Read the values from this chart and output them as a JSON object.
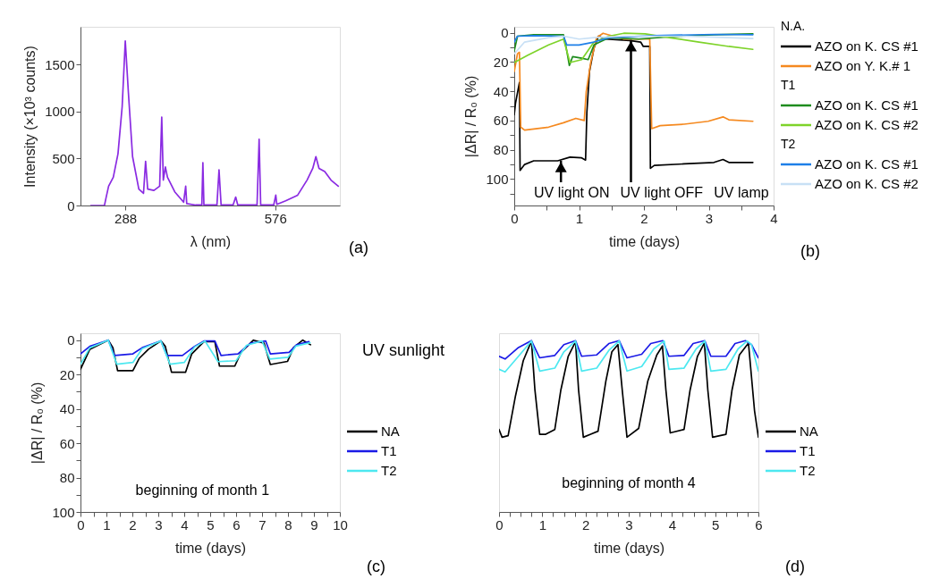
{
  "chart_data": [
    {
      "type": "line",
      "xlabel": "λ (nm)",
      "ylabel": "Intensity (×10³ counts)",
      "xlim": [
        202,
        700
      ],
      "ylim": [
        0,
        1900
      ],
      "xticks": [
        288,
        576
      ],
      "yticks": [
        0,
        500,
        1000,
        1500
      ],
      "annotations": [
        "(a)"
      ],
      "series": [
        {
          "color": "#8a2be2",
          "x": [
            222,
            248,
            251,
            256,
            265,
            274,
            282,
            288,
            294,
            302,
            314,
            323,
            327,
            331,
            343,
            354,
            358,
            361,
            365,
            369,
            383,
            400,
            404,
            406,
            423,
            435,
            437,
            439,
            464,
            468,
            472,
            495,
            500,
            504,
            541,
            545,
            548,
            573,
            577,
            579,
            596,
            619,
            637,
            648,
            654,
            660,
            671,
            683,
            697
          ],
          "values": [
            0,
            0,
            80,
            205,
            300,
            550,
            1050,
            1750,
            1200,
            520,
            175,
            130,
            470,
            175,
            160,
            205,
            940,
            270,
            410,
            300,
            145,
            35,
            205,
            20,
            5,
            5,
            455,
            5,
            5,
            380,
            5,
            5,
            90,
            5,
            5,
            705,
            5,
            5,
            110,
            12,
            50,
            110,
            270,
            395,
            520,
            395,
            360,
            270,
            205
          ]
        }
      ]
    },
    {
      "type": "line",
      "xlabel": "time (days)",
      "ylabel": "|ΔR| / R₀ (%)",
      "xlim": [
        0,
        4
      ],
      "ylim": [
        118,
        -4
      ],
      "xticks": [
        0,
        {
          "value": 0.5,
          "label": null
        },
        1,
        {
          "value": 1.5,
          "label": null
        },
        2,
        {
          "value": 2.5,
          "label": null
        },
        3,
        {
          "value": 3.5,
          "label": null
        },
        4
      ],
      "yticks": [
        0,
        {
          "value": 10,
          "label": null
        },
        20,
        {
          "value": 30,
          "label": null
        },
        40,
        {
          "value": 50,
          "label": null
        },
        60,
        {
          "value": 70,
          "label": null
        },
        80,
        {
          "value": 90,
          "label": null
        },
        100,
        {
          "value": 110,
          "label": null
        }
      ],
      "legend": "right",
      "annotations": [
        "N.A.",
        "T1",
        "T2",
        "UV lamp",
        {
          "text": "UV light ON",
          "x": 0.72,
          "y": 87.5
        },
        {
          "text": "UV light OFF",
          "x": 1.8,
          "y": 5
        },
        "(b)"
      ],
      "series": [
        {
          "name": "AZO on K. CS #1",
          "color": "#000000",
          "x": [
            0,
            0.02,
            0.08,
            0.09,
            0.16,
            0.3,
            0.67,
            0.86,
            1.04,
            1.1,
            1.12,
            1.16,
            1.23,
            1.3,
            1.41,
            1.78,
            1.95,
            1.99,
            2.09,
            2.1,
            2.16,
            2.62,
            3.08,
            3.22,
            3.31,
            3.68
          ],
          "values": [
            56,
            48,
            34,
            94,
            90,
            87.5,
            87.5,
            85,
            85.5,
            87,
            54.5,
            26.5,
            10.4,
            2.4,
            4.4,
            5.4,
            6.4,
            9.4,
            9.4,
            92.6,
            90.6,
            89.6,
            88.6,
            86.6,
            88.6,
            88.6
          ]
        },
        {
          "name": "AZO on Y. K.# 1",
          "color": "#f5891f",
          "x": [
            0,
            0.05,
            0.08,
            0.1,
            0.16,
            0.53,
            0.76,
            0.95,
            1.08,
            1.11,
            1.18,
            1.27,
            1.37,
            1.69,
            2.09,
            2.12,
            2.25,
            2.62,
            2.99,
            3.22,
            3.31,
            3.68
          ],
          "values": [
            26.5,
            14.4,
            13.4,
            64.5,
            66.5,
            64.5,
            61.5,
            58.5,
            60,
            40.5,
            20.4,
            3.4,
            0.4,
            4.4,
            4.4,
            65.5,
            63.5,
            62.5,
            60.5,
            57.5,
            59.5,
            60.5
          ]
        },
        {
          "name": "AZO on K. CS #1",
          "color": "#1e8c1e",
          "x": [
            0,
            0.05,
            0.3,
            0.76,
            0.81,
            0.85,
            0.9,
            1.04,
            1.14,
            1.23,
            1.32,
            1.46,
            1.92,
            2.39,
            3.08,
            3.68
          ],
          "values": [
            12.4,
            2.4,
            1.4,
            1.4,
            12.4,
            22.4,
            16.4,
            17.4,
            18.4,
            8.4,
            6.4,
            3.4,
            4.4,
            2.8,
            1.4,
            0.8
          ]
        },
        {
          "name": "AZO on K. CS #2",
          "color": "#7ed32a",
          "x": [
            0,
            0.21,
            0.53,
            0.76,
            0.86,
            1.04,
            1.23,
            1.46,
            1.69,
            2.02,
            2.39,
            2.85,
            3.31,
            3.68
          ],
          "values": [
            20.4,
            15.4,
            8.4,
            4.4,
            20.4,
            18.4,
            6.4,
            2.4,
            0.4,
            0.8,
            3.4,
            6.4,
            9.4,
            11.4
          ]
        },
        {
          "name": "AZO on K. CS #1",
          "color": "#1e7fe8",
          "x": [
            0,
            0.05,
            0.3,
            0.76,
            0.81,
            1.0,
            1.23,
            1.46,
            2.16,
            3.08,
            3.68
          ],
          "values": [
            6.4,
            2.4,
            2,
            2.4,
            8.4,
            8.4,
            6.4,
            3.4,
            2,
            1.2,
            1.4
          ]
        },
        {
          "name": "AZO on K. CS #2",
          "color": "#c8e0f5",
          "x": [
            0,
            0.16,
            0.53,
            0.76,
            1.0,
            1.23,
            1.69,
            2.62,
            3.31,
            3.68
          ],
          "values": [
            14.4,
            6.4,
            3.4,
            2.4,
            4.4,
            3.4,
            2.4,
            2.4,
            3.4,
            4
          ]
        }
      ]
    },
    {
      "type": "line",
      "xlabel": "time (days)",
      "ylabel": "|ΔR| / R₀ (%)",
      "xlim": [
        0,
        10
      ],
      "ylim": [
        100,
        -4
      ],
      "xticks": [
        0,
        {
          "value": 0.5,
          "label": null
        },
        1,
        {
          "value": 1.5,
          "label": null
        },
        2,
        {
          "value": 2.5,
          "label": null
        },
        3,
        {
          "value": 3.5,
          "label": null
        },
        4,
        {
          "value": 4.5,
          "label": null
        },
        5,
        {
          "value": 5.5,
          "label": null
        },
        6,
        {
          "value": 6.5,
          "label": null
        },
        7,
        {
          "value": 7.5,
          "label": null
        },
        8,
        {
          "value": 8.5,
          "label": null
        },
        9,
        {
          "value": 9.5,
          "label": null
        },
        10
      ],
      "yticks": [
        0,
        {
          "value": 10,
          "label": null
        },
        20,
        {
          "value": 30,
          "label": null
        },
        40,
        {
          "value": 50,
          "label": null
        },
        60,
        {
          "value": 70,
          "label": null
        },
        80,
        {
          "value": 90,
          "label": null
        },
        100
      ],
      "legend": "right",
      "annotations": [
        "beginning of month 1",
        "UV sunlight",
        "(c)"
      ],
      "series": [
        {
          "name": "NA",
          "color": "#000000",
          "x": [
            0,
            0.36,
            1.07,
            1.25,
            1.43,
            2.02,
            2.26,
            2.62,
            3.1,
            3.27,
            3.51,
            4.05,
            4.29,
            4.76,
            5.18,
            5.36,
            5.95,
            6.19,
            6.67,
            7.08,
            7.32,
            7.98,
            8.21,
            8.57,
            8.87
          ],
          "values": [
            17,
            5.3,
            0,
            4.4,
            17.8,
            17.8,
            10.7,
            5.3,
            0.5,
            3.6,
            18.7,
            18.7,
            8,
            0.9,
            0.9,
            15.1,
            15.1,
            7.1,
            0,
            1.8,
            14.2,
            12.4,
            4.4,
            0,
            2.7
          ]
        },
        {
          "name": "T1",
          "color": "#1a1ae6",
          "x": [
            0,
            0.36,
            1.07,
            1.31,
            2.02,
            2.38,
            3.1,
            3.33,
            3.93,
            4.4,
            4.76,
            5.18,
            5.42,
            6.07,
            6.55,
            7.14,
            7.32,
            8.04,
            8.33,
            8.81
          ],
          "values": [
            8,
            3.6,
            0,
            8.9,
            8,
            4.4,
            0.4,
            8.9,
            8.9,
            3.6,
            0.5,
            0.5,
            8.9,
            8,
            1.8,
            0.5,
            8,
            7.1,
            2.7,
            0.9
          ]
        },
        {
          "name": "T2",
          "color": "#4de8f0",
          "x": [
            0,
            0.36,
            1.07,
            1.4,
            2.02,
            2.38,
            3.1,
            3.45,
            4.0,
            4.4,
            4.8,
            5.3,
            6.0,
            6.4,
            7.0,
            7.3,
            8.0,
            8.3,
            8.85
          ],
          "values": [
            14,
            4.5,
            0,
            14,
            13,
            5,
            0.5,
            14,
            13,
            4,
            0.5,
            12.5,
            12,
            3,
            0.5,
            11,
            10,
            3.5,
            1.5
          ]
        }
      ]
    },
    {
      "type": "line",
      "xlabel": "time (days)",
      "xlim": [
        0,
        6
      ],
      "ylim": [
        100,
        -4
      ],
      "tick_labels": "x",
      "xticks": [
        0,
        {
          "value": 0.25,
          "label": null
        },
        {
          "value": 0.5,
          "label": null
        },
        {
          "value": 0.75,
          "label": null
        },
        1,
        {
          "value": 1.25,
          "label": null
        },
        {
          "value": 1.5,
          "label": null
        },
        {
          "value": 1.75,
          "label": null
        },
        2,
        {
          "value": 2.25,
          "label": null
        },
        {
          "value": 2.5,
          "label": null
        },
        {
          "value": 2.75,
          "label": null
        },
        3,
        {
          "value": 3.25,
          "label": null
        },
        {
          "value": 3.5,
          "label": null
        },
        {
          "value": 3.75,
          "label": null
        },
        4,
        {
          "value": 4.25,
          "label": null
        },
        {
          "value": 4.5,
          "label": null
        },
        {
          "value": 4.75,
          "label": null
        },
        5,
        {
          "value": 5.25,
          "label": null
        },
        {
          "value": 5.5,
          "label": null
        },
        {
          "value": 5.75,
          "label": null
        },
        6
      ],
      "legend": "right",
      "annotations": [
        "beginning of month 4",
        "(d)"
      ],
      "series": [
        {
          "name": "NA",
          "color": "#000000",
          "x": [
            0,
            0.07,
            0.21,
            0.38,
            0.56,
            0.75,
            0.83,
            0.94,
            1.08,
            1.29,
            1.43,
            1.6,
            1.77,
            1.84,
            1.95,
            2.12,
            2.29,
            2.47,
            2.61,
            2.75,
            2.85,
            2.96,
            3.23,
            3.44,
            3.65,
            3.78,
            3.86,
            3.96,
            4.28,
            4.42,
            4.59,
            4.75,
            4.83,
            4.94,
            5.25,
            5.39,
            5.56,
            5.77,
            5.91,
            6.0
          ],
          "values": [
            52,
            56.5,
            55.6,
            32.5,
            12,
            0.5,
            29,
            54.8,
            54.8,
            52,
            29,
            9.4,
            0.9,
            29,
            56.5,
            54.8,
            53,
            24,
            6.8,
            2.6,
            29,
            56.5,
            51.4,
            24,
            8.6,
            3.4,
            29,
            54,
            52,
            29,
            9.4,
            1.7,
            29,
            56.5,
            54.8,
            29,
            8.6,
            1.7,
            41,
            56.5
          ]
        },
        {
          "name": "T1",
          "color": "#1a1ae6",
          "x": [
            0,
            0.14,
            0.45,
            0.75,
            0.94,
            1.29,
            1.5,
            1.77,
            1.91,
            2.26,
            2.54,
            2.78,
            2.96,
            3.3,
            3.51,
            3.79,
            3.93,
            4.28,
            4.49,
            4.76,
            4.9,
            5.25,
            5.46,
            5.7,
            5.84,
            6.0
          ],
          "values": [
            9.4,
            11,
            4.3,
            0.3,
            10.3,
            8.9,
            2.6,
            0.3,
            9.4,
            8.6,
            2,
            0.3,
            10.3,
            8.2,
            2,
            0.3,
            9.4,
            8.9,
            2,
            0.3,
            9.4,
            9.4,
            2,
            0.3,
            2.6,
            10.3
          ]
        },
        {
          "name": "T2",
          "color": "#4de8f0",
          "x": [
            0,
            0.14,
            0.45,
            0.75,
            0.94,
            1.29,
            1.5,
            1.77,
            1.91,
            2.26,
            2.54,
            2.78,
            2.96,
            3.3,
            3.58,
            3.82,
            3.93,
            4.28,
            4.56,
            4.76,
            4.9,
            5.25,
            5.53,
            5.74,
            5.84,
            6.0
          ],
          "values": [
            17,
            18.5,
            9.4,
            0.5,
            18,
            16.3,
            6.8,
            0.5,
            18,
            16.3,
            6,
            0.5,
            18,
            15.4,
            5.1,
            0.5,
            17,
            16.3,
            5.1,
            0.5,
            18,
            17,
            5.1,
            0.5,
            2.6,
            18
          ]
        }
      ]
    }
  ]
}
